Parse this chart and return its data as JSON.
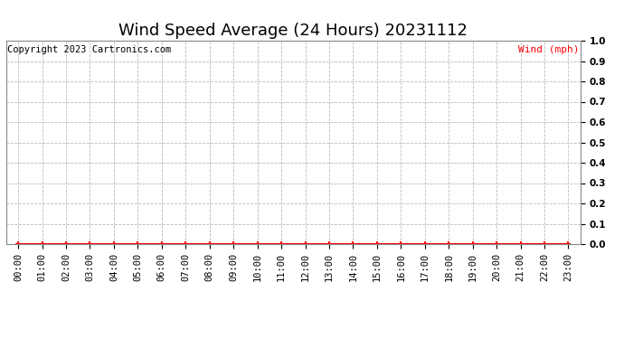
{
  "title": "Wind Speed Average (24 Hours) 20231112",
  "copyright_text": "Copyright 2023 Cartronics.com",
  "legend_label": "Wind (mph)",
  "legend_color": "#ff0000",
  "copyright_color": "#000000",
  "x_labels": [
    "00:00",
    "01:00",
    "02:00",
    "03:00",
    "04:00",
    "05:00",
    "06:00",
    "07:00",
    "08:00",
    "09:00",
    "10:00",
    "11:00",
    "12:00",
    "13:00",
    "14:00",
    "15:00",
    "16:00",
    "17:00",
    "18:00",
    "19:00",
    "20:00",
    "21:00",
    "22:00",
    "23:00"
  ],
  "y_tick_values": [
    0.0,
    0.1,
    0.2,
    0.3,
    0.4,
    0.5,
    0.6,
    0.7,
    0.8,
    0.9,
    1.0
  ],
  "ylim": [
    0.0,
    1.0
  ],
  "wind_data": [
    0,
    0,
    0,
    0,
    0,
    0,
    0,
    0,
    0,
    0,
    0,
    0,
    0,
    0,
    0,
    0,
    0,
    0,
    0,
    0,
    0,
    0,
    0,
    0
  ],
  "line_color": "#ff0000",
  "marker_color": "#ff0000",
  "grid_color": "#bbbbbb",
  "bg_color": "#ffffff",
  "title_fontsize": 13,
  "tick_fontsize": 7.5,
  "copyright_fontsize": 7.5,
  "legend_fontsize": 8
}
